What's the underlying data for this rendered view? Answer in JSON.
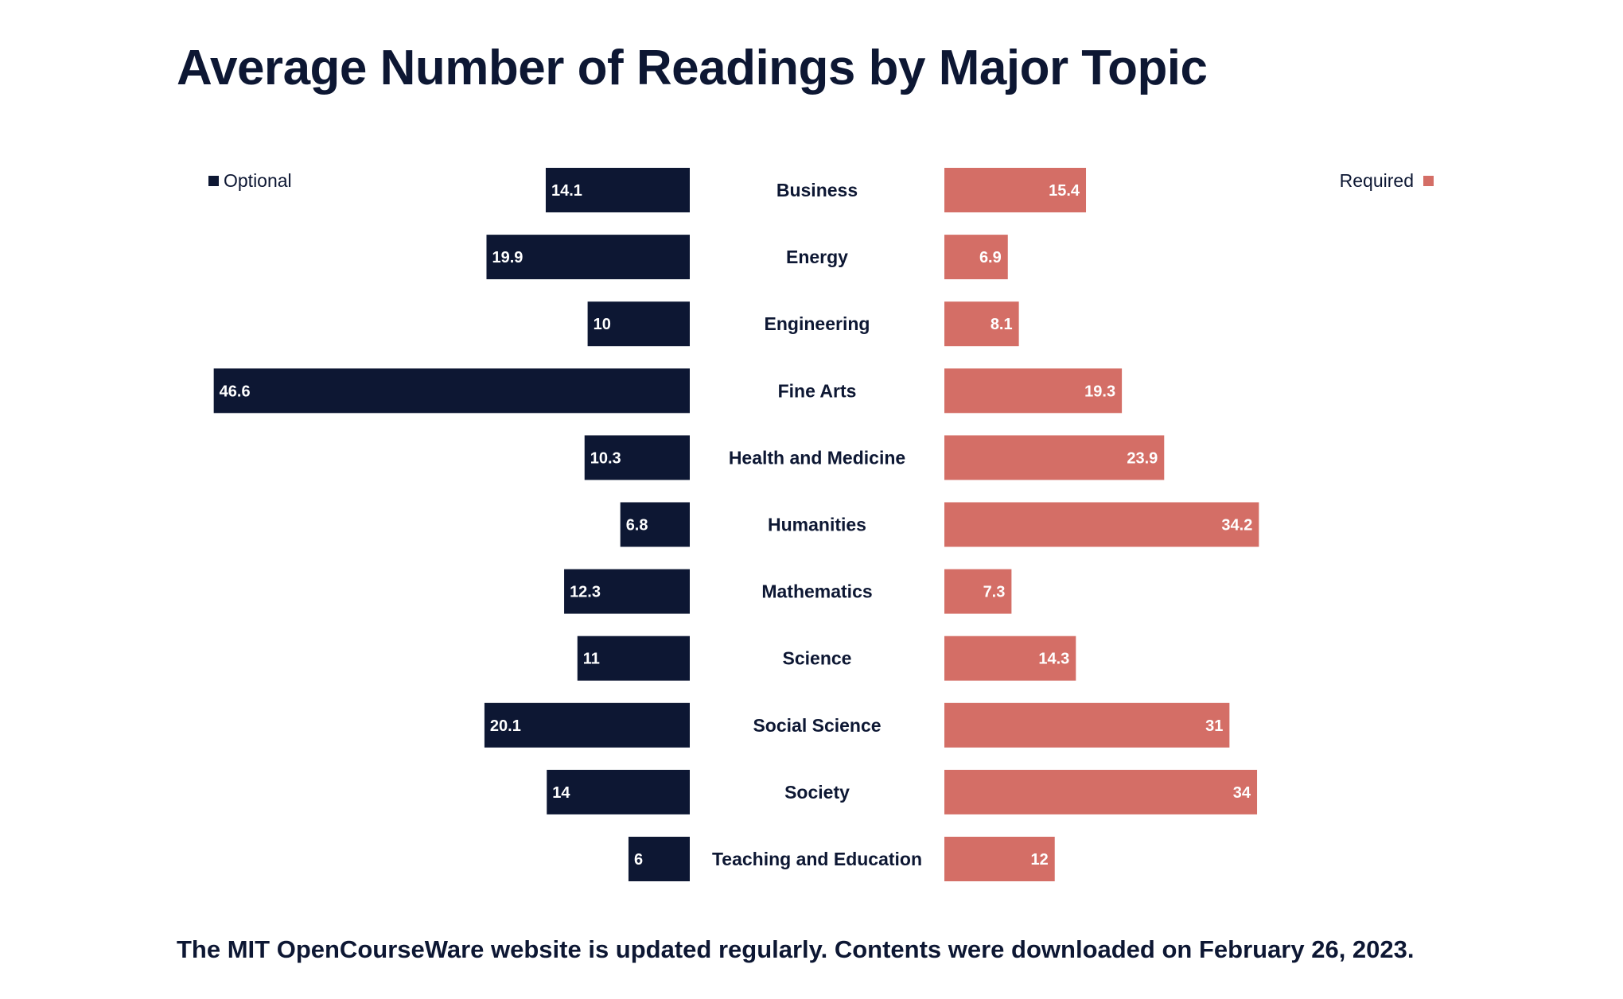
{
  "title": "Average Number of Readings by Major Topic",
  "footnote": "The MIT OpenCourseWare website is updated regularly. Contents were downloaded on February 26, 2023.",
  "colors": {
    "optional": "#0d1733",
    "required": "#d46e66",
    "text": "#0d1733"
  },
  "chart_data": {
    "type": "bar",
    "orientation": "horizontal-diverging",
    "title": "Average Number of Readings by Major Topic",
    "categories": [
      "Business",
      "Energy",
      "Engineering",
      "Fine Arts",
      "Health and Medicine",
      "Humanities",
      "Mathematics",
      "Science",
      "Social Science",
      "Society",
      "Teaching and Education"
    ],
    "series": [
      {
        "name": "Optional",
        "values": [
          14.1,
          19.9,
          10,
          46.6,
          10.3,
          6.8,
          12.3,
          11,
          20.1,
          14,
          6
        ],
        "labels": [
          "14.1",
          "19.9",
          "10",
          "46.6",
          "10.3",
          "6.8",
          "12.3",
          "11",
          "20.1",
          "14",
          "6"
        ]
      },
      {
        "name": "Required",
        "values": [
          15.4,
          6.9,
          8.1,
          19.3,
          23.9,
          34.2,
          7.3,
          14.3,
          31,
          34,
          12
        ],
        "labels": [
          "15.4",
          "6.9",
          "8.1",
          "19.3",
          "23.9",
          "34.2",
          "7.3",
          "14.3",
          "31",
          "34",
          "12"
        ]
      }
    ],
    "legend": {
      "optional_placement": "top-left",
      "required_placement": "top-right"
    },
    "grid": false,
    "axes_visible": false
  }
}
